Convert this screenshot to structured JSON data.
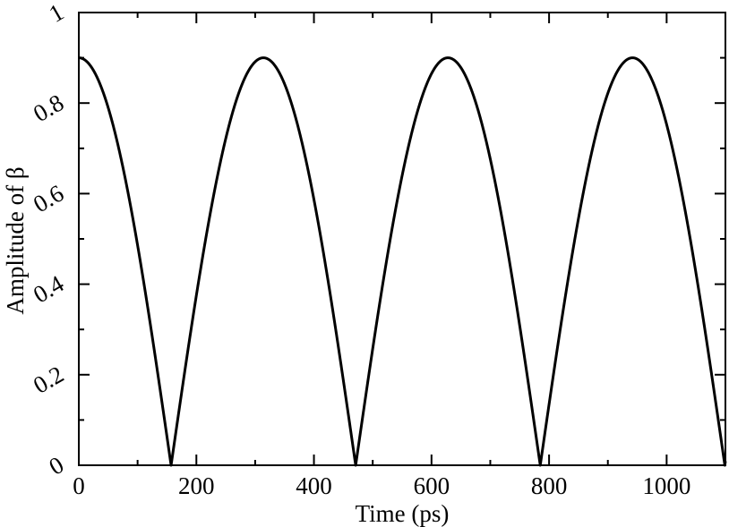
{
  "chart_data": {
    "type": "line",
    "title": "",
    "xlabel": "Time (ps)",
    "ylabel": "Amplitude of β",
    "xlim": [
      0,
      1100
    ],
    "ylim": [
      0,
      1
    ],
    "grid": false,
    "x_ticks": [
      0,
      200,
      400,
      600,
      800,
      1000
    ],
    "x_tick_labels": [
      "0",
      "200",
      "400",
      "600",
      "800",
      "1000"
    ],
    "y_ticks": [
      0,
      0.2,
      0.4,
      0.6,
      0.8,
      1
    ],
    "y_tick_labels": [
      "0",
      "0.2",
      "0.4",
      "0.6",
      "0.8",
      "1"
    ],
    "x_minor_step": 100,
    "y_minor_step": 0.1,
    "line_color": "#000000",
    "series": [
      {
        "amplitude_max": 0.9,
        "period_ps": 628,
        "zero_crossings_ps": [
          157,
          471,
          785,
          1099
        ],
        "peaks_ps": [
          0,
          314,
          628,
          942
        ],
        "x_range": [
          0,
          1100
        ]
      }
    ]
  }
}
